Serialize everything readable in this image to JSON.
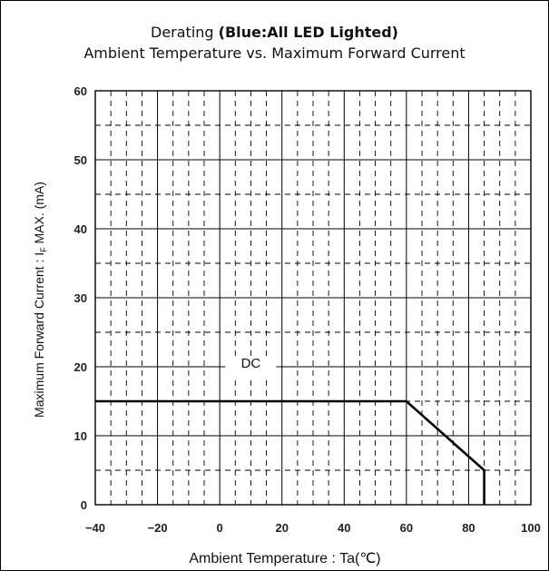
{
  "chart_data": {
    "type": "line",
    "title_prefix": "Derating ",
    "title_bold": "(Blue:All LED Lighted)",
    "subtitle": "Ambient Temperature vs. Maximum Forward Current",
    "xlabel": "Ambient Temperature : Ta(℃)",
    "ylabel_prefix": "Maximum Forward Current : I",
    "ylabel_subscript": "F",
    "ylabel_suffix": " MAX. (mA)",
    "xlim": [
      -40,
      100
    ],
    "ylim": [
      0,
      60
    ],
    "x_ticks": [
      -40,
      -20,
      0,
      20,
      40,
      60,
      80,
      100
    ],
    "y_ticks": [
      0,
      10,
      20,
      30,
      40,
      50,
      60
    ],
    "x_tick_labels": [
      "−40",
      "−20",
      "0",
      "20",
      "40",
      "60",
      "80",
      "100"
    ],
    "y_tick_labels": [
      "0",
      "10",
      "20",
      "30",
      "40",
      "50",
      "60"
    ],
    "grid": true,
    "series": [
      {
        "x": [
          -40,
          60,
          85,
          85
        ],
        "y": [
          15,
          15,
          5,
          0
        ]
      }
    ],
    "annotations": [
      {
        "text": "DC",
        "x": 10,
        "y": 20
      }
    ]
  }
}
